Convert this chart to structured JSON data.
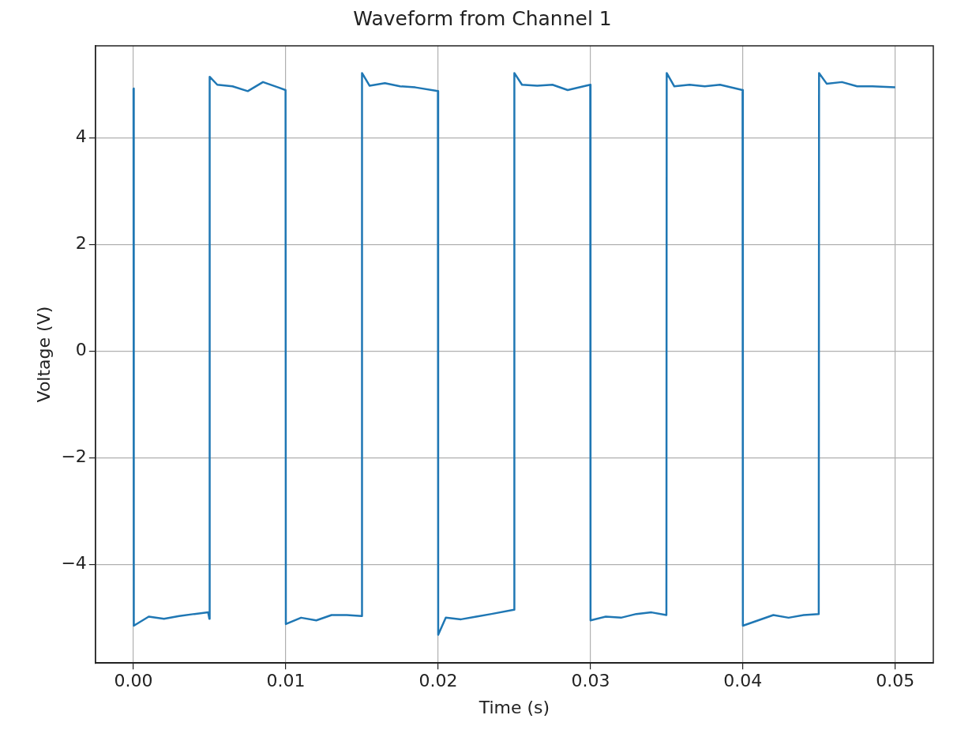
{
  "chart_data": {
    "type": "line",
    "title": "Waveform from Channel 1",
    "xlabel": "Time (s)",
    "ylabel": "Voltage (V)",
    "xlim": [
      -0.0025,
      0.0525
    ],
    "ylim": [
      -5.85,
      5.73
    ],
    "xticks": [
      {
        "value": 0,
        "label": "0.00"
      },
      {
        "value": 0.01,
        "label": "0.01"
      },
      {
        "value": 0.02,
        "label": "0.02"
      },
      {
        "value": 0.03,
        "label": "0.03"
      },
      {
        "value": 0.04,
        "label": "0.04"
      },
      {
        "value": 0.05,
        "label": "0.05"
      }
    ],
    "yticks": [
      {
        "value": -4,
        "label": "−4"
      },
      {
        "value": -2,
        "label": "−2"
      },
      0,
      2,
      4
    ],
    "grid": true,
    "marker": "none",
    "line_style": "solid",
    "series": [
      {
        "color": "#1f77b4",
        "x": [
          0,
          2e-05,
          0.001,
          0.002,
          0.003,
          0.004,
          0.0049,
          0.00498,
          0.005,
          0.0055,
          0.0065,
          0.0075,
          0.0085,
          0.0095,
          0.00998,
          0.01,
          0.011,
          0.012,
          0.013,
          0.014,
          0.01498,
          0.015,
          0.0155,
          0.0165,
          0.0175,
          0.0185,
          0.01998,
          0.02,
          0.0205,
          0.0215,
          0.0225,
          0.0235,
          0.02498,
          0.025,
          0.0255,
          0.0265,
          0.0275,
          0.0285,
          0.02998,
          0.03,
          0.031,
          0.032,
          0.033,
          0.034,
          0.03498,
          0.035,
          0.0355,
          0.0365,
          0.0375,
          0.0385,
          0.03998,
          0.04,
          0.041,
          0.042,
          0.043,
          0.044,
          0.04498,
          0.045,
          0.0455,
          0.0465,
          0.0475,
          0.0485,
          0.05
        ],
        "values": [
          4.93,
          -5.15,
          -4.98,
          -5.02,
          -4.97,
          -4.93,
          -4.9,
          -5.02,
          5.15,
          5.0,
          4.97,
          4.88,
          5.05,
          4.95,
          4.9,
          -5.12,
          -5.0,
          -5.05,
          -4.95,
          -4.95,
          -4.97,
          5.22,
          4.98,
          5.03,
          4.97,
          4.95,
          4.88,
          -5.32,
          -5.0,
          -5.03,
          -4.98,
          -4.93,
          -4.85,
          5.22,
          5.0,
          4.98,
          5.0,
          4.9,
          5.0,
          -5.05,
          -4.98,
          -5.0,
          -4.93,
          -4.9,
          -4.95,
          5.22,
          4.97,
          5.0,
          4.97,
          5.0,
          4.9,
          -5.15,
          -5.05,
          -4.95,
          -5.0,
          -4.95,
          -4.93,
          5.22,
          5.02,
          5.05,
          4.97,
          4.97,
          4.95
        ]
      }
    ]
  }
}
